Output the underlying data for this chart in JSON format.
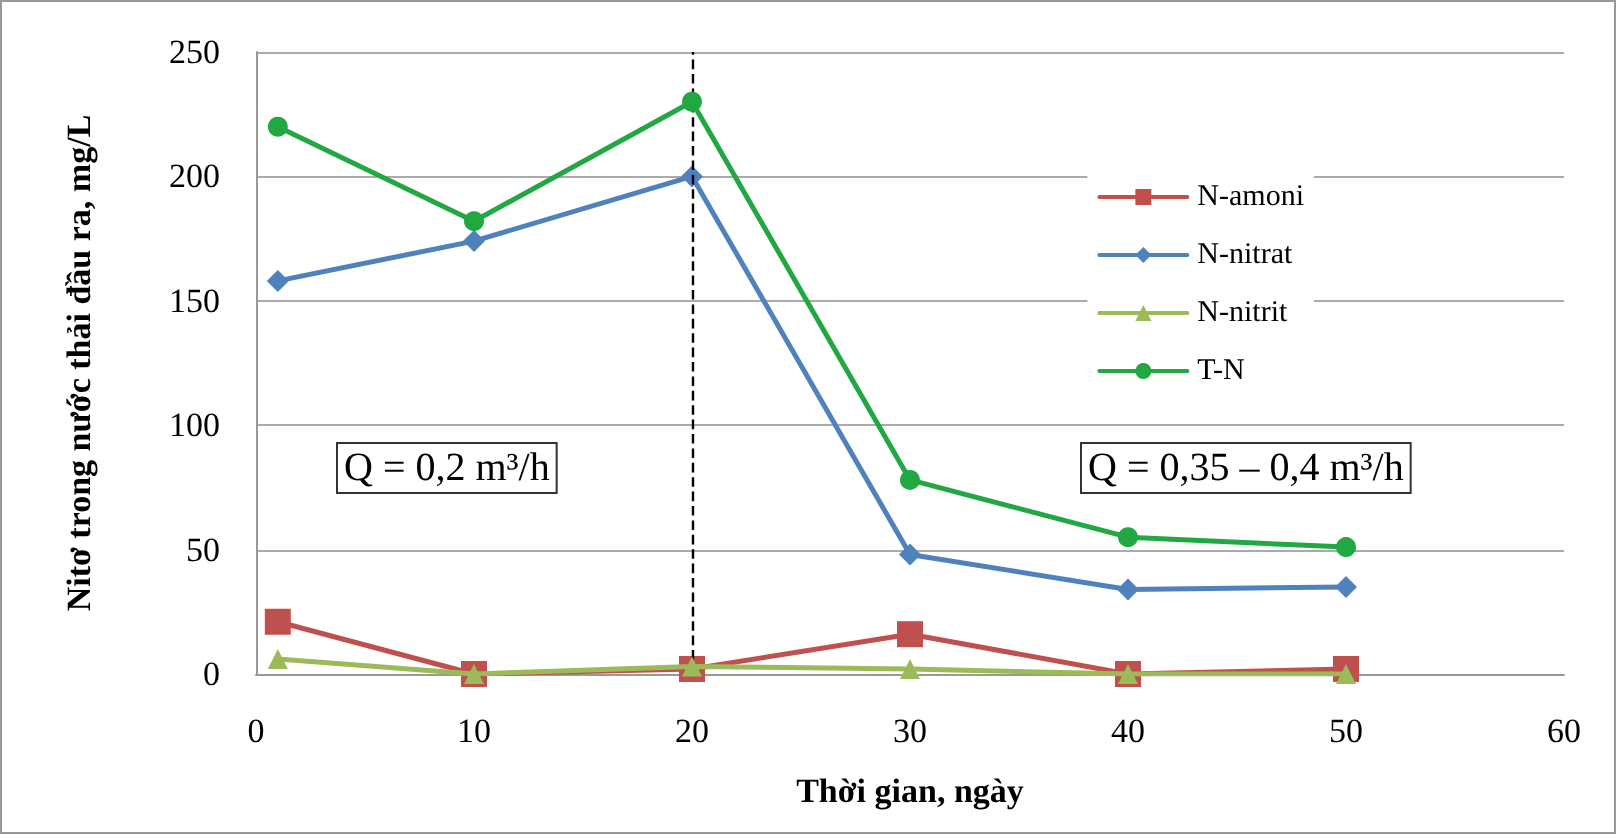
{
  "chart_data": {
    "type": "line",
    "xlabel": "Thời gian, ngày",
    "ylabel": "Nitơ trong nước thải đầu ra, mg/L",
    "x": [
      1,
      10,
      20,
      30,
      40,
      50
    ],
    "series": [
      {
        "name": "N-amoni",
        "color": "#c0504d",
        "marker": "square",
        "values": [
          21,
          0,
          2,
          16,
          0,
          2
        ]
      },
      {
        "name": "N-nitrat",
        "color": "#4f81bd",
        "marker": "diamond",
        "values": [
          158,
          174,
          200,
          48,
          34,
          35
        ]
      },
      {
        "name": "N-nitrit",
        "color": "#9bbb59",
        "marker": "triangle",
        "values": [
          6,
          0,
          3,
          2,
          0,
          0
        ]
      },
      {
        "name": "T-N",
        "color": "#22a843",
        "marker": "circle",
        "values": [
          220,
          182,
          230,
          78,
          55,
          51
        ]
      }
    ],
    "xlim": [
      0,
      60
    ],
    "xticks": [
      0,
      10,
      20,
      30,
      40,
      50,
      60
    ],
    "ylim": [
      0,
      250
    ],
    "yticks": [
      0,
      50,
      100,
      150,
      200,
      250
    ],
    "ref_lines": [
      {
        "axis": "x",
        "value": 20,
        "color": "#000000",
        "line_style": "dashed"
      }
    ],
    "annotations": [
      "Q = 0,2 m³/h",
      "Q = 0,35 – 0,4 m³/h"
    ],
    "grid": "y",
    "legend": "right",
    "line_style": "solid"
  }
}
